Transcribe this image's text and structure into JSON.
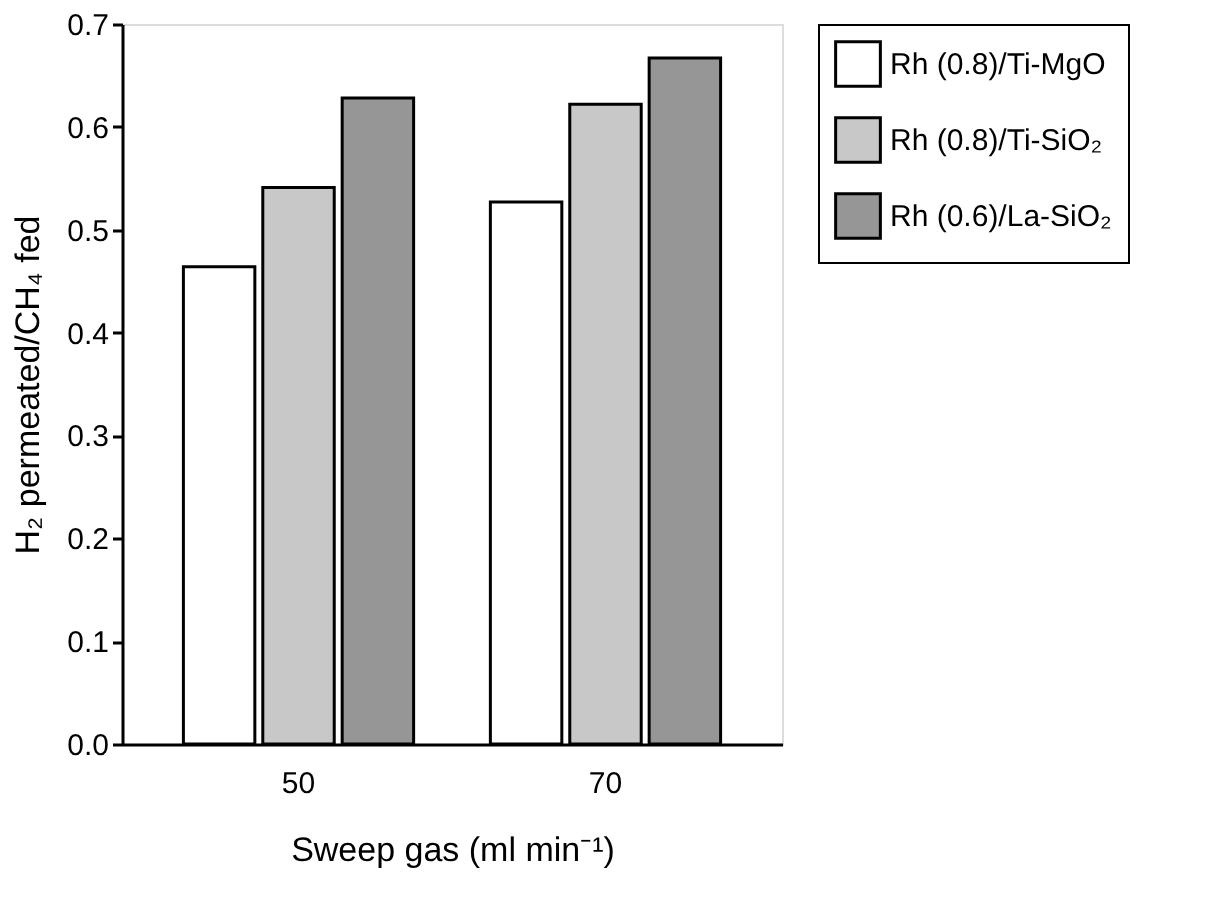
{
  "chart_data": {
    "type": "bar",
    "xlabel": "Sweep gas (ml  min⁻¹)",
    "ylabel": "H₂ permeated/CH₄ fed",
    "categories": [
      "50",
      "70"
    ],
    "series": [
      {
        "name": "Rh (0.8)/Ti-MgO",
        "color": "#ffffff",
        "values": [
          0.464,
          0.527
        ]
      },
      {
        "name": "Rh (0.8)/Ti-SiO₂",
        "color": "#c8c8c8",
        "values": [
          0.541,
          0.622
        ]
      },
      {
        "name": "Rh (0.6)/La-SiO₂",
        "color": "#969696",
        "values": [
          0.628,
          0.667
        ]
      }
    ],
    "ylim": [
      0,
      0.7
    ],
    "yticks": [
      {
        "value": 0,
        "label": "0.0"
      },
      0.1,
      0.2,
      0.3,
      0.4,
      0.5,
      0.6,
      0.7
    ],
    "grid": false,
    "legend": "right"
  }
}
